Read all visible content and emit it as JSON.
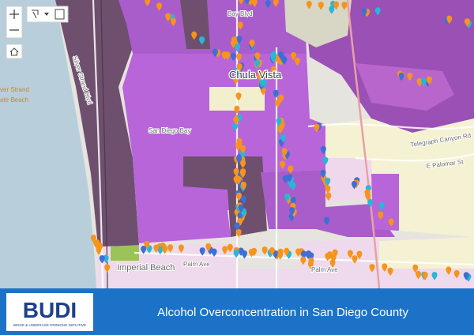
{
  "map": {
    "labels": [
      "Chula Vista",
      "San Diego Bay",
      "Imperial Beach",
      "Palm Ave",
      "Palm Ave",
      "Telegraph Canyon Rd",
      "E Palomar St",
      "Bay Blvd",
      "Silver Strand Blvd",
      "ver Strand",
      "ate Beach"
    ]
  },
  "banner": {
    "title": "Alcohol Overconcentration in San Diego County",
    "logo": {
      "name": "BUDI",
      "tagline": "BINGE & UNDERAGE DRINKING INITIATIVE"
    }
  }
}
